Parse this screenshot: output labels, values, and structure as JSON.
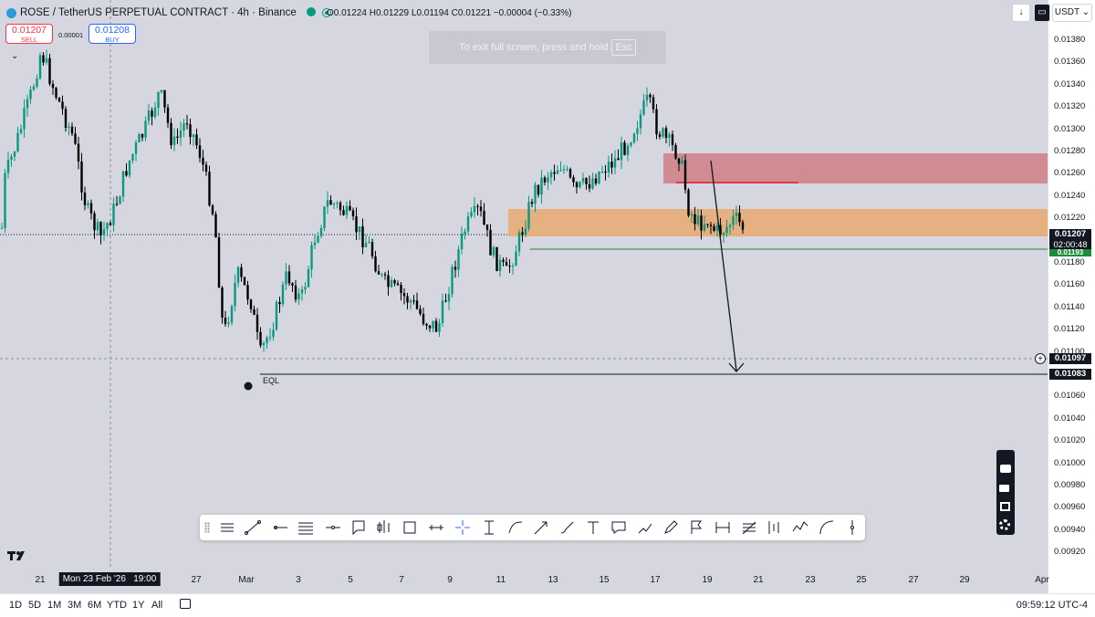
{
  "header": {
    "title": "ROSE / TetherUS PERPETUAL CONTRACT · 4h · Binance",
    "ohlc": {
      "open_label": "O",
      "open": "0.01224",
      "high_label": "H",
      "high": "0.01229",
      "low_label": "L",
      "low": "0.01194",
      "close_label": "C",
      "close": "0.01221",
      "change": "−0.00004 (−0.33%)"
    },
    "currency_button": "USDT"
  },
  "trade": {
    "sell_price": "0.01207",
    "sell_label": "SELL",
    "buy_price": "0.01208",
    "buy_label": "BUY",
    "spread": "0.00001"
  },
  "overlay": {
    "esc_hint": "To exit full screen, press and hold",
    "esc_key": "Esc"
  },
  "price_scale": {
    "ticks": [
      "0.01380",
      "0.01360",
      "0.01340",
      "0.01320",
      "0.01300",
      "0.01280",
      "0.01260",
      "0.01240",
      "0.01220",
      "0.01200",
      "0.01180",
      "0.01160",
      "0.01140",
      "0.01120",
      "0.01100",
      "0.01080",
      "0.01060",
      "0.01040",
      "0.01020",
      "0.01000",
      "0.00980",
      "0.00960",
      "0.00940",
      "0.00920"
    ],
    "last_price": "0.01207",
    "countdown": "02:00:48",
    "line_level_1": "0.01193",
    "crosshair_price": "0.01097",
    "eql_price": "0.01083"
  },
  "time_scale": {
    "ticks": [
      "21",
      "Mon 23 Feb '26   19:00",
      "27",
      "Mar",
      "3",
      "5",
      "7",
      "9",
      "11",
      "13",
      "15",
      "17",
      "19",
      "21",
      "23",
      "25",
      "27",
      "29",
      "Apr"
    ]
  },
  "annotations": {
    "eql_label": "EQL"
  },
  "bottom_bar": {
    "ranges": [
      "1D",
      "5D",
      "1M",
      "3M",
      "6M",
      "YTD",
      "1Y",
      "All"
    ],
    "clock": "09:59:12 UTC-4"
  },
  "drawing_tools": [
    "trend-angle-icon",
    "trend-line-icon",
    "horizontal-ray-icon",
    "parallel-channel-icon",
    "horizontal-line-icon",
    "callout-icon",
    "long-position-icon",
    "rectangle-icon",
    "price-range-icon",
    "crosshair-icon",
    "text-cursor-icon",
    "curve-icon",
    "arrow-icon",
    "brush-icon",
    "text-icon",
    "comment-icon",
    "path-icon",
    "pen-icon",
    "flag-icon",
    "date-range-icon",
    "fib-retracement-icon",
    "bars-pattern-icon",
    "elliott-wave-icon",
    "arc-icon",
    "vertical-line-icon"
  ],
  "colors": {
    "chart_bg": "#d5d6df",
    "bull": "#089981",
    "bear": "#000000",
    "supply_zone": "#d18b93",
    "demand_zone": "#e8ad77",
    "support_line": "#1e8c3a",
    "red_line": "#e0202a"
  }
}
